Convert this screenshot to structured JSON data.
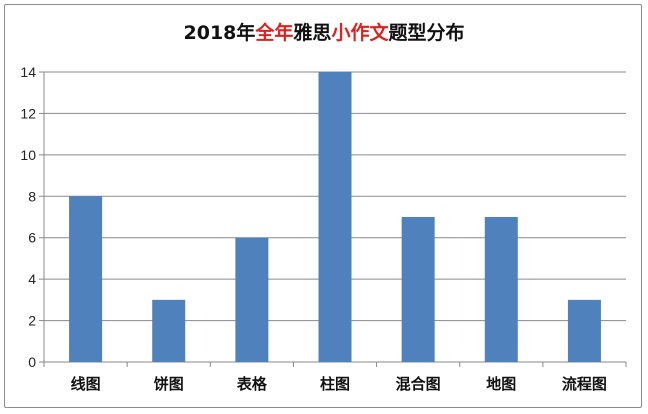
{
  "chart_data": {
    "type": "bar",
    "title_parts": [
      {
        "text": "2018年",
        "highlight": false
      },
      {
        "text": "全年",
        "highlight": true
      },
      {
        "text": "雅思",
        "highlight": false
      },
      {
        "text": "小作文",
        "highlight": true
      },
      {
        "text": "题型分布",
        "highlight": false
      }
    ],
    "categories": [
      "线图",
      "饼图",
      "表格",
      "柱图",
      "混合图",
      "地图",
      "流程图"
    ],
    "values": [
      8,
      3,
      6,
      14,
      7,
      7,
      3
    ],
    "ylim": [
      0,
      14
    ],
    "yticks": [
      0,
      2,
      4,
      6,
      8,
      10,
      12,
      14
    ],
    "grid": true,
    "legend": "none",
    "bar_color": "#4f81bd",
    "highlight_color": "#e0201b"
  }
}
